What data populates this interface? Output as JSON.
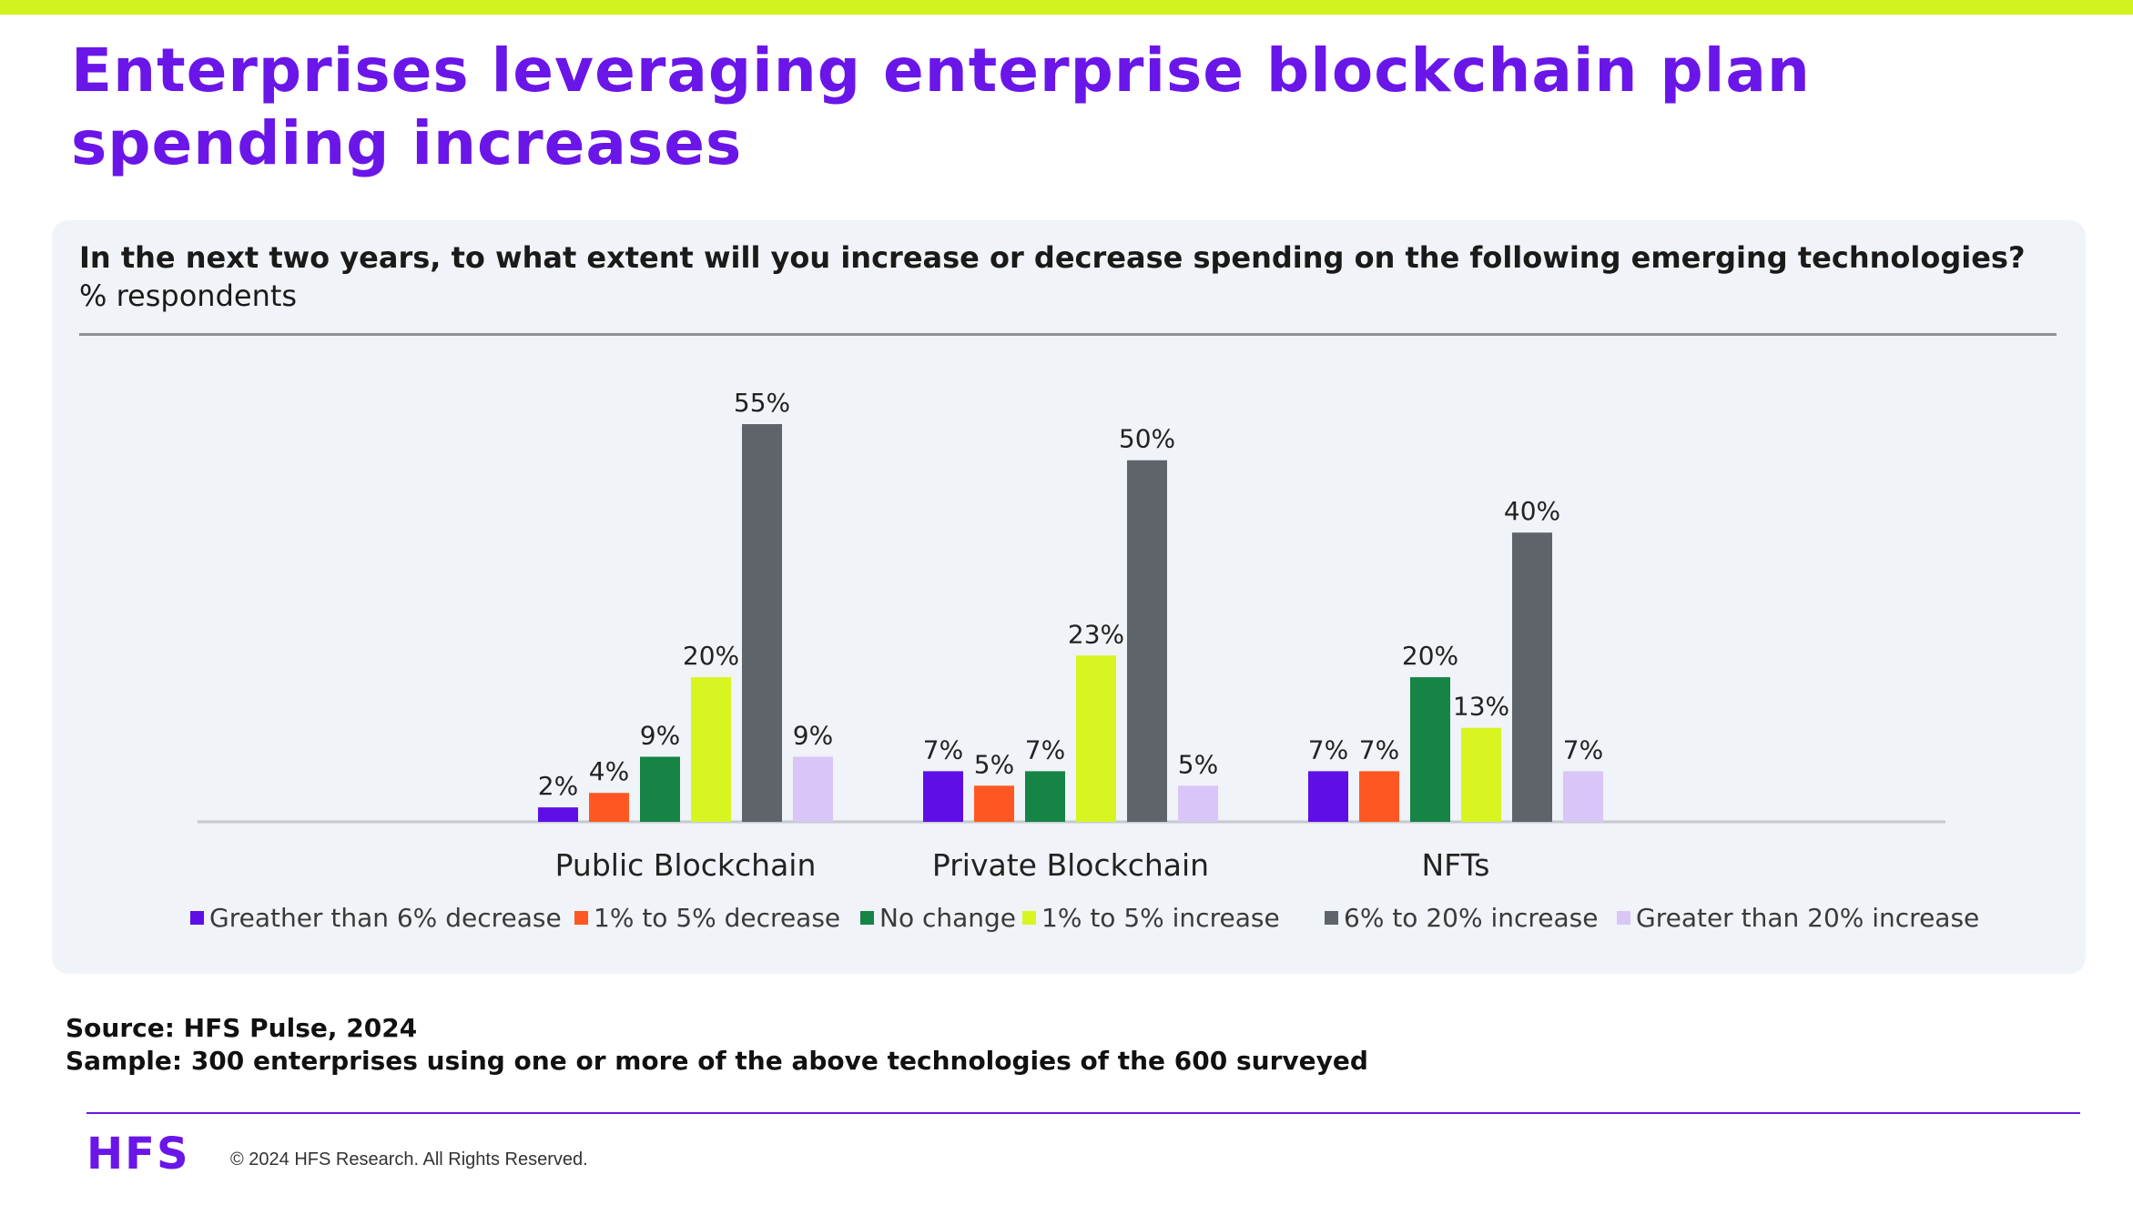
{
  "title": "Enterprises leveraging enterprise blockchain plan spending increases",
  "chart_data": {
    "type": "bar",
    "title": "In the next two years, to what extent will you increase or decrease spending on the following emerging technologies?",
    "subtitle": "% respondents",
    "categories": [
      "Public Blockchain",
      "Private Blockchain",
      "NFTs"
    ],
    "series": [
      {
        "name": "Greather than 6% decrease",
        "color": "#5f0fe6",
        "values": [
          2,
          7,
          7
        ],
        "labels": [
          "2%",
          "7%",
          "7%"
        ]
      },
      {
        "name": "1% to 5% decrease",
        "color": "#ff5722",
        "values": [
          4,
          5,
          7
        ],
        "labels": [
          "4%",
          "5%",
          "7%"
        ]
      },
      {
        "name": "No change",
        "color": "#168444",
        "values": [
          9,
          7,
          20
        ],
        "labels": [
          "9%",
          "7%",
          "20%"
        ]
      },
      {
        "name": "1% to 5% increase",
        "color": "#d9f521",
        "values": [
          20,
          23,
          13
        ],
        "labels": [
          "20%",
          "23%",
          "13%"
        ]
      },
      {
        "name": "6% to 20% increase",
        "color": "#5f646b",
        "values": [
          55,
          50,
          40
        ],
        "labels": [
          "55%",
          "50%",
          "40%"
        ]
      },
      {
        "name": "Greater than 20% increase",
        "color": "#d9c6f8",
        "values": [
          9,
          5,
          7
        ],
        "labels": [
          "9%",
          "5%",
          "7%"
        ]
      }
    ],
    "ylim": [
      0,
      55
    ],
    "grid": false,
    "legend_position": "bottom"
  },
  "source": "Source: HFS Pulse, 2024",
  "sample": "Sample: 300 enterprises using one or more of the above technologies of the 600 surveyed",
  "footer": {
    "logo": "HFS",
    "copyright": "© 2024 HFS Research. All Rights Reserved."
  }
}
